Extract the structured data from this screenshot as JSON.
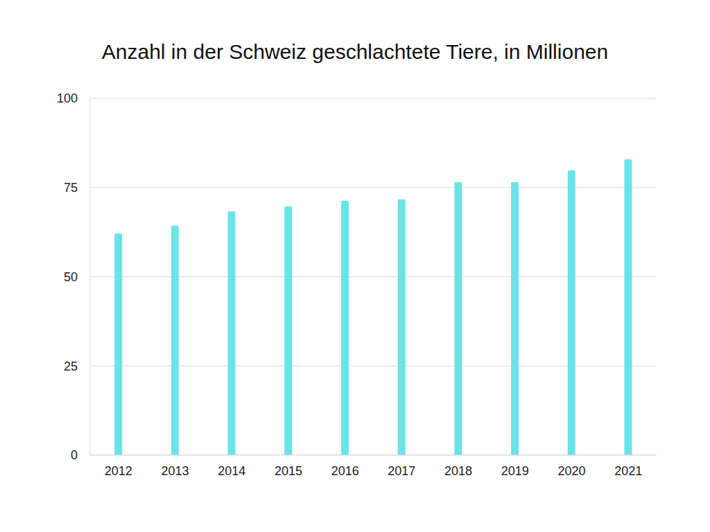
{
  "chart_data": {
    "type": "bar",
    "title": "Anzahl in der Schweiz geschlachtete Tiere, in Millionen",
    "categories": [
      "2012",
      "2013",
      "2014",
      "2015",
      "2016",
      "2017",
      "2018",
      "2019",
      "2020",
      "2021"
    ],
    "values": [
      62.1,
      64.3,
      68.3,
      69.7,
      71.3,
      71.7,
      76.5,
      76.5,
      79.8,
      82.9
    ],
    "color": "#6ae4e6",
    "ylim": [
      0,
      100
    ],
    "yticks": [
      0,
      25,
      50,
      75,
      100
    ],
    "grid": true
  }
}
